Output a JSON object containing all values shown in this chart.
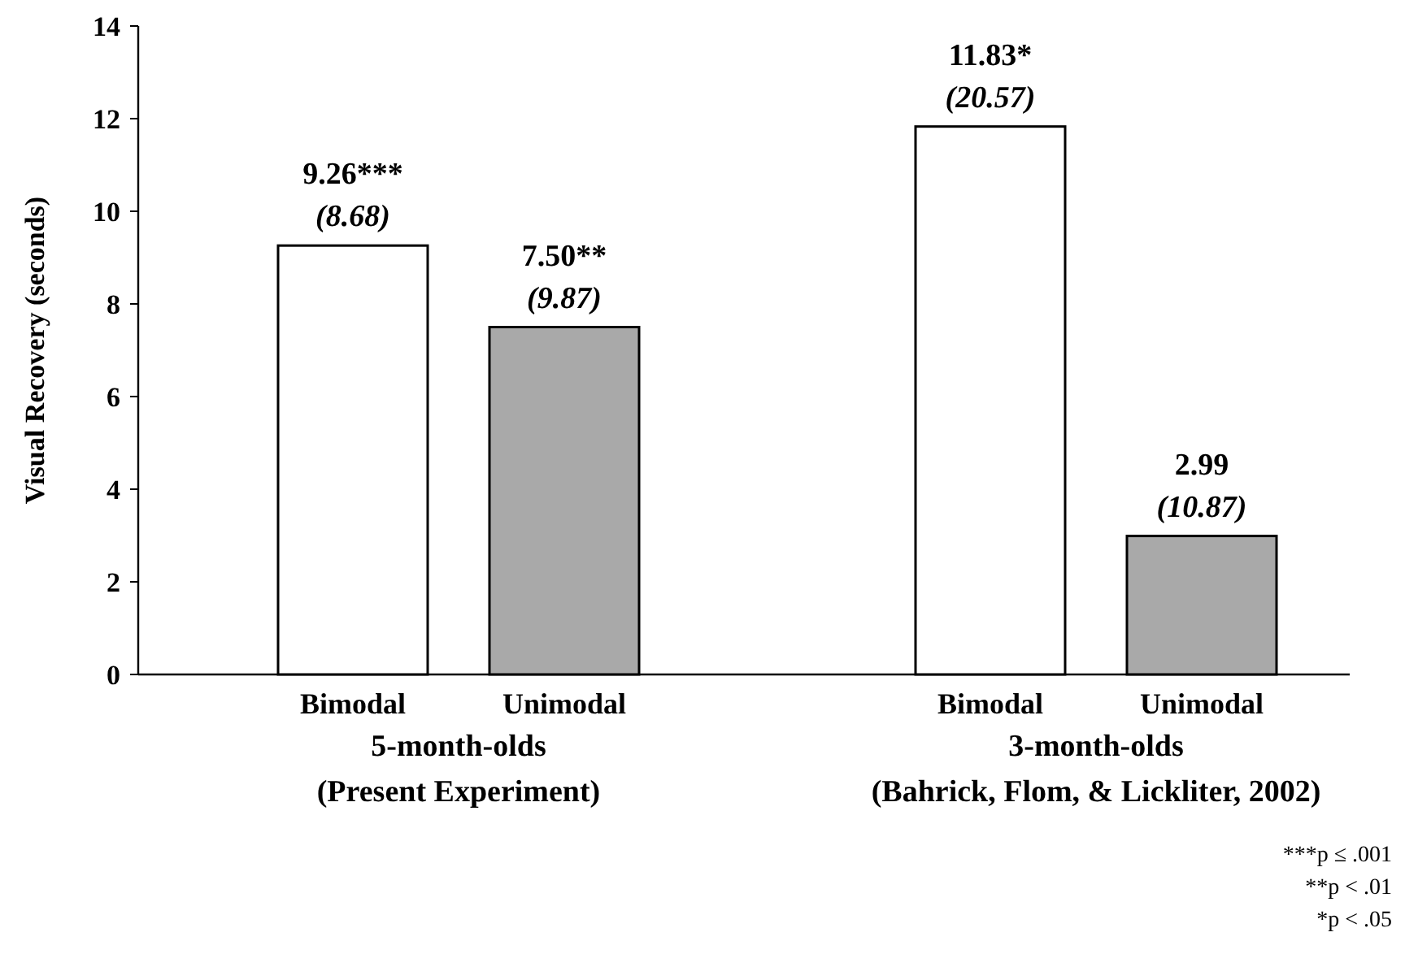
{
  "chart_data": {
    "type": "bar",
    "ylabel": "Visual Recovery (seconds)",
    "categories": [
      "Bimodal",
      "Unimodal",
      "Bimodal",
      "Unimodal"
    ],
    "values": [
      9.26,
      7.5,
      11.83,
      2.99
    ],
    "colors": [
      "#ffffff",
      "#a9a9a9",
      "#ffffff",
      "#a9a9a9"
    ],
    "value_labels": [
      "9.26***\n(8.68)",
      "7.50**\n(9.87)",
      "11.83*\n(20.57)",
      "2.99\n(10.87)"
    ],
    "ylim": [
      0,
      14
    ],
    "yticks": [
      0,
      2,
      4,
      6,
      8,
      10,
      12,
      14
    ],
    "grid": false,
    "annotations": [
      "5-month-olds\n(Present Experiment)",
      "3-month-olds\n(Bahrick, Flom, & Lickliter, 2002)",
      "***p ≤ .001",
      "**p < .01",
      "*p < .05"
    ]
  }
}
